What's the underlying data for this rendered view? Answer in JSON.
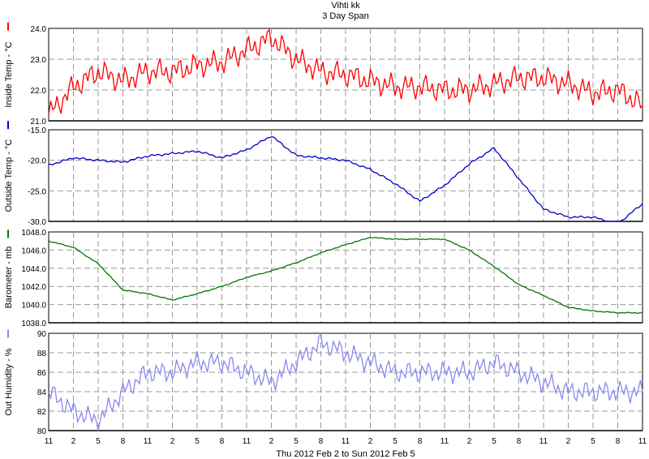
{
  "chart_data": {
    "type": "line",
    "title": "Vihti kk",
    "subtitle": "3 Day Span",
    "xlabel": "Thu 2012 Feb 2  to  Sun 2012 Feb 5",
    "x_ticks": [
      "11",
      "2",
      "5",
      "8",
      "11",
      "2",
      "5",
      "8",
      "11",
      "2",
      "5",
      "8",
      "11",
      "2",
      "5",
      "8",
      "11",
      "2",
      "5",
      "8",
      "11",
      "2",
      "5",
      "8",
      "11"
    ],
    "grid": true,
    "panels": [
      {
        "name": "inside-temp",
        "ylabel": "Inside Temp - °C",
        "color": "#ff0000",
        "ylim": [
          21.0,
          24.0
        ],
        "y_ticks": [
          "24.0",
          "23.0",
          "22.0",
          "21.0"
        ],
        "x": [
          0,
          1,
          2,
          3,
          4,
          5,
          6,
          7,
          8,
          9,
          10,
          11,
          12,
          13,
          14,
          15,
          16,
          17,
          18,
          19,
          20,
          21,
          22,
          23,
          24
        ],
        "values": [
          21.2,
          22.1,
          22.6,
          22.3,
          22.6,
          22.6,
          22.8,
          22.9,
          23.3,
          23.7,
          23.0,
          22.6,
          22.5,
          22.3,
          22.1,
          22.1,
          22.0,
          22.0,
          22.2,
          22.4,
          22.4,
          22.2,
          21.9,
          22.0,
          21.5
        ],
        "wiggle": 0.45
      },
      {
        "name": "outside-temp",
        "ylabel": "Outside Temp - °C",
        "color": "#0000cc",
        "ylim": [
          -30.0,
          -15.0
        ],
        "y_ticks": [
          "-15.0",
          "-20.0",
          "-25.0",
          "-30.0"
        ],
        "x": [
          0,
          1,
          2,
          3,
          4,
          5,
          6,
          7,
          8,
          9,
          10,
          11,
          12,
          13,
          14,
          15,
          16,
          17,
          18,
          19,
          20,
          21,
          22,
          23,
          24
        ],
        "values": [
          -20.8,
          -19.6,
          -20.0,
          -20.3,
          -19.3,
          -18.9,
          -18.5,
          -19.6,
          -18.3,
          -16.0,
          -19.2,
          -19.6,
          -20.0,
          -21.5,
          -23.8,
          -26.7,
          -24.1,
          -20.6,
          -18.0,
          -23.0,
          -28.0,
          -29.3,
          -29.3,
          -30.4,
          -27.1
        ],
        "wiggle": 0.2
      },
      {
        "name": "barometer",
        "ylabel": "Barometer - mb",
        "color": "#007700",
        "ylim": [
          1038.0,
          1048.0
        ],
        "y_ticks": [
          "1048.0",
          "1046.0",
          "1044.0",
          "1042.0",
          "1040.0",
          "1038.0"
        ],
        "x": [
          0,
          1,
          2,
          3,
          4,
          5,
          6,
          7,
          8,
          9,
          10,
          11,
          12,
          13,
          14,
          15,
          16,
          17,
          18,
          19,
          20,
          21,
          22,
          23,
          24
        ],
        "values": [
          1047.0,
          1046.3,
          1044.5,
          1041.6,
          1041.2,
          1040.5,
          1041.2,
          1042.0,
          1043.0,
          1043.7,
          1044.6,
          1045.7,
          1046.6,
          1047.4,
          1047.2,
          1047.2,
          1047.2,
          1046.0,
          1044.2,
          1042.2,
          1041.0,
          1039.7,
          1039.3,
          1039.1,
          1039.1
        ],
        "wiggle": 0.06
      },
      {
        "name": "out-humidity",
        "ylabel": "Out Humidity - %",
        "color": "#8888ee",
        "ylim": [
          80,
          90
        ],
        "y_ticks": [
          "90",
          "88",
          "86",
          "84",
          "82",
          "80"
        ],
        "x": [
          0,
          1,
          2,
          3,
          4,
          5,
          6,
          7,
          8,
          9,
          10,
          11,
          12,
          13,
          14,
          15,
          16,
          17,
          18,
          19,
          20,
          21,
          22,
          23,
          24
        ],
        "values": [
          84,
          82,
          81,
          84,
          86,
          86,
          87,
          87,
          86,
          85,
          87,
          89,
          88,
          87,
          86,
          86,
          86,
          86,
          87,
          86,
          85,
          84,
          84,
          84,
          84
        ],
        "wiggle": 1.2
      }
    ]
  }
}
